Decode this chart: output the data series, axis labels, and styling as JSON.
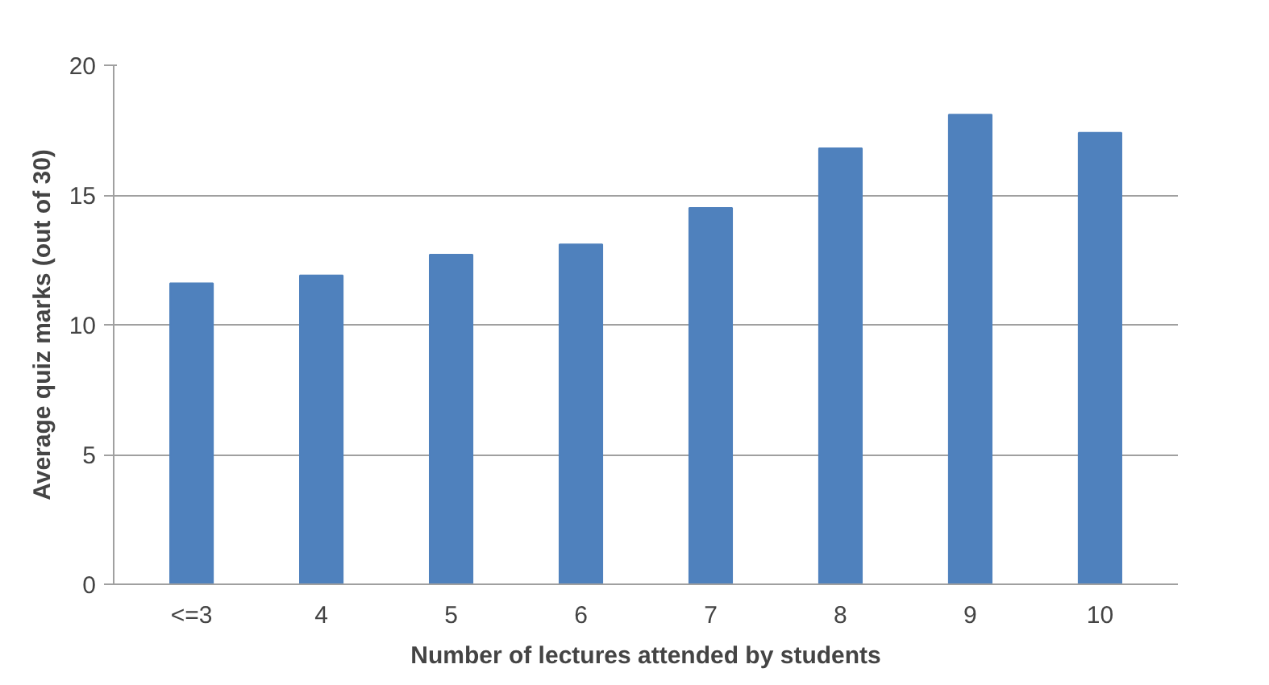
{
  "chart_data": {
    "type": "bar",
    "xlabel": "Number of lectures attended by students",
    "ylabel": "Average quiz marks (out of 30)",
    "categories": [
      "<=3",
      "4",
      "5",
      "6",
      "7",
      "8",
      "9",
      "10"
    ],
    "values": [
      11.6,
      11.9,
      12.7,
      13.1,
      14.5,
      16.8,
      18.1,
      17.4
    ],
    "color": "#4f81bd",
    "ylim": [
      0,
      20
    ],
    "yticks": [
      0,
      5,
      10,
      15,
      20
    ],
    "grid": "y"
  }
}
